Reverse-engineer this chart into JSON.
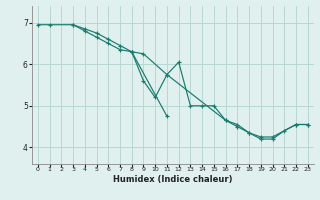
{
  "title": "",
  "xlabel": "Humidex (Indice chaleur)",
  "xlim": [
    -0.5,
    23.5
  ],
  "ylim": [
    3.6,
    7.4
  ],
  "yticks": [
    4,
    5,
    6,
    7
  ],
  "xticks": [
    0,
    1,
    2,
    3,
    4,
    5,
    6,
    7,
    8,
    9,
    10,
    11,
    12,
    13,
    14,
    15,
    16,
    17,
    18,
    19,
    20,
    21,
    22,
    23
  ],
  "background_color": "#dff0ee",
  "grid_color": "#b8d8d4",
  "line_color": "#1a7a6e",
  "series": [
    {
      "x": [
        0,
        1,
        3,
        4,
        5,
        6,
        7,
        8,
        9,
        10,
        11,
        12,
        13,
        14,
        15,
        16,
        17,
        18,
        19,
        20,
        22,
        23
      ],
      "y": [
        6.95,
        6.95,
        6.95,
        6.85,
        6.75,
        6.6,
        6.45,
        6.3,
        5.6,
        5.2,
        5.75,
        6.05,
        5.0,
        5.0,
        5.0,
        4.65,
        4.55,
        4.35,
        4.25,
        4.25,
        4.55,
        4.55
      ]
    },
    {
      "x": [
        3,
        4,
        5,
        6,
        7,
        8,
        11
      ],
      "y": [
        6.95,
        6.8,
        6.65,
        6.5,
        6.35,
        6.3,
        4.75
      ]
    },
    {
      "x": [
        8,
        9,
        11,
        16,
        17,
        18,
        19,
        20,
        21,
        22,
        23
      ],
      "y": [
        6.3,
        6.25,
        5.75,
        4.65,
        4.5,
        4.35,
        4.2,
        4.2,
        4.4,
        4.55,
        4.55
      ]
    }
  ]
}
